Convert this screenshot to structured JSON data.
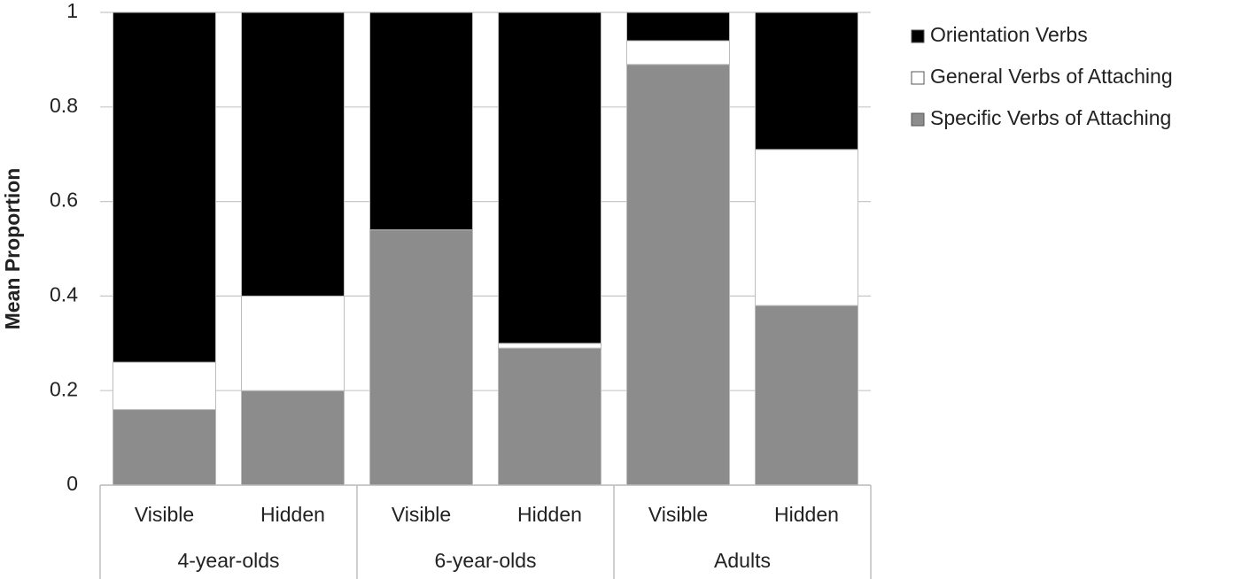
{
  "chart_data": {
    "type": "stacked_bar",
    "y_label": "Mean Proportion",
    "categories": [
      "Visible",
      "Hidden",
      "Visible",
      "Hidden",
      "Visible",
      "Hidden"
    ],
    "groups": [
      "4-year-olds",
      "6-year-olds",
      "Adults"
    ],
    "series": [
      {
        "name": "Specific Verbs of Attaching",
        "color": "#8c8c8c",
        "values": [
          0.16,
          0.2,
          0.54,
          0.29,
          0.89,
          0.38
        ]
      },
      {
        "name": "General Verbs of Attaching",
        "color": "#ffffff",
        "values": [
          0.1,
          0.2,
          0,
          0.01,
          0.05,
          0.33
        ]
      },
      {
        "name": "Orientation Verbs",
        "color": "#000000",
        "values": [
          0.74,
          0.6,
          0.46,
          0.7,
          0.06,
          0.29
        ]
      }
    ],
    "ylim": [
      0,
      1
    ],
    "yticks": [
      0,
      0.2,
      0.4,
      0.6,
      0.8,
      1
    ],
    "grid": true,
    "legend": "right"
  }
}
